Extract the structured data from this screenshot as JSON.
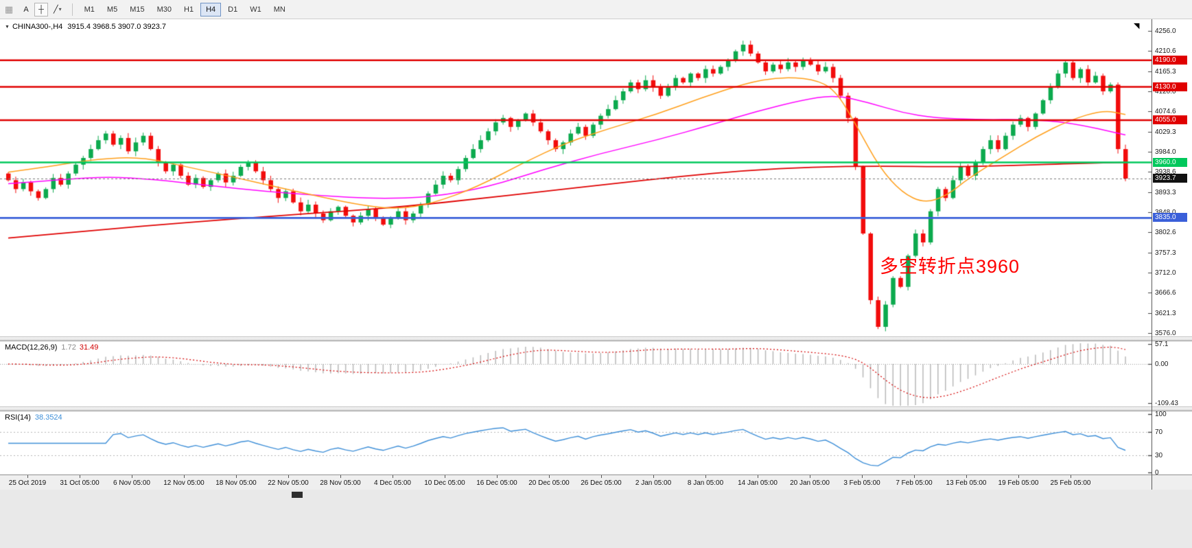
{
  "app": {
    "colors": {
      "up": "#0caa4e",
      "down": "#f20c0c",
      "resistance": "#e00000",
      "pivot": "#00c85c",
      "support": "#3a5fd9",
      "current": "#111111",
      "ma_fast": "#ff9f1a",
      "ma_mid": "#ff00ff",
      "ma_slow": "#e00000",
      "macd_hist": "#b8b8b8",
      "macd_signal": "#d40000",
      "rsi_line": "#3e8fd8",
      "annotation": "#ff0000"
    }
  },
  "toolbar": {
    "icons": [
      {
        "name": "toolbar-handle-icon",
        "glyph": "▦",
        "boxed": false
      },
      {
        "name": "text-annotation-button",
        "glyph": "A",
        "boxed": false
      },
      {
        "name": "crosshair-tool-button",
        "glyph": "┼",
        "boxed": true
      },
      {
        "name": "line-studies-button",
        "glyph": "╱",
        "caret": "▾",
        "boxed": false
      }
    ],
    "timeframes": [
      {
        "label": "M1",
        "selected": false
      },
      {
        "label": "M5",
        "selected": false
      },
      {
        "label": "M15",
        "selected": false
      },
      {
        "label": "M30",
        "selected": false
      },
      {
        "label": "H1",
        "selected": false
      },
      {
        "label": "H4",
        "selected": true
      },
      {
        "label": "D1",
        "selected": false
      },
      {
        "label": "W1",
        "selected": false
      },
      {
        "label": "MN",
        "selected": false
      }
    ]
  },
  "main_chart": {
    "symbol": "CHINA300-,H4",
    "ohlc_text": "3915.4 3968.5 3907.0 3923.7",
    "annotation": "多空转折点3960",
    "y_ticks": [
      "4256.0",
      "4210.6",
      "4165.3",
      "4120.0",
      "4074.6",
      "4029.3",
      "3984.0",
      "3938.6",
      "3893.3",
      "3848.0",
      "3802.6",
      "3757.3",
      "3712.0",
      "3666.6",
      "3621.3",
      "3576.0"
    ],
    "levels": [
      {
        "value": 4190.0,
        "label": "4190.0",
        "kind": "resistance"
      },
      {
        "value": 4130.0,
        "label": "4130.0",
        "kind": "resistance"
      },
      {
        "value": 4055.0,
        "label": "4055.0",
        "kind": "resistance"
      },
      {
        "value": 3960.0,
        "label": "3960.0",
        "kind": "pivot"
      },
      {
        "value": 3835.0,
        "label": "3835.0",
        "kind": "support"
      }
    ],
    "current_price": {
      "value": 3923.7,
      "label": "3923.7"
    }
  },
  "macd_panel": {
    "name": "MACD(12,26,9)",
    "value_main": "1.72",
    "value_signal": "31.49",
    "y_ticks": [
      {
        "label": "57.1",
        "value": 57.1
      },
      {
        "label": "0.00",
        "value": 0
      },
      {
        "label": "-109.43",
        "value": -109.43
      }
    ],
    "ylim": [
      -120,
      64
    ]
  },
  "rsi_panel": {
    "name": "RSI(14)",
    "value": "38.3524",
    "y_ticks": [
      {
        "label": "100",
        "value": 100
      },
      {
        "label": "70",
        "value": 70
      },
      {
        "label": "30",
        "value": 30
      },
      {
        "label": "0",
        "value": 0
      }
    ],
    "levels": [
      70,
      30
    ]
  },
  "time_axis": {
    "labels": [
      "25 Oct 2019",
      "31 Oct 05:00",
      "6 Nov 05:00",
      "12 Nov 05:00",
      "18 Nov 05:00",
      "22 Nov 05:00",
      "28 Nov 05:00",
      "4 Dec 05:00",
      "10 Dec 05:00",
      "16 Dec 05:00",
      "20 Dec 05:00",
      "26 Dec 05:00",
      "2 Jan 05:00",
      "8 Jan 05:00",
      "14 Jan 05:00",
      "20 Jan 05:00",
      "3 Feb 05:00",
      "7 Feb 05:00",
      "13 Feb 05:00",
      "19 Feb 05:00",
      "25 Feb 05:00"
    ]
  },
  "chart_data": {
    "type": "candlestick",
    "symbol": "CHINA300-",
    "timeframe": "H4",
    "ohlc_current": {
      "open": 3915.4,
      "high": 3968.5,
      "low": 3907.0,
      "close": 3923.7
    },
    "y_range": [
      3576.0,
      4256.0
    ],
    "first_open": 3935,
    "closes": [
      3920,
      3900,
      3915,
      3895,
      3880,
      3900,
      3925,
      3910,
      3935,
      3955,
      3970,
      3990,
      4010,
      4025,
      4000,
      4015,
      3985,
      4005,
      4020,
      3990,
      3960,
      3940,
      3955,
      3930,
      3910,
      3925,
      3905,
      3920,
      3935,
      3915,
      3930,
      3950,
      3960,
      3940,
      3920,
      3900,
      3880,
      3895,
      3870,
      3850,
      3865,
      3845,
      3830,
      3850,
      3860,
      3840,
      3825,
      3840,
      3855,
      3835,
      3820,
      3835,
      3850,
      3830,
      3845,
      3865,
      3890,
      3910,
      3930,
      3920,
      3945,
      3970,
      3990,
      4010,
      4030,
      4050,
      4060,
      4040,
      4055,
      4070,
      4050,
      4030,
      4010,
      3990,
      4005,
      4025,
      4040,
      4020,
      4045,
      4065,
      4080,
      4100,
      4120,
      4140,
      4125,
      4145,
      4130,
      4110,
      4130,
      4150,
      4140,
      4160,
      4150,
      4170,
      4160,
      4175,
      4190,
      4210,
      4225,
      4205,
      4185,
      4165,
      4180,
      4170,
      4185,
      4175,
      4190,
      4180,
      4165,
      4175,
      4150,
      4110,
      4060,
      3950,
      3800,
      3650,
      3590,
      3640,
      3700,
      3680,
      3750,
      3800,
      3780,
      3850,
      3900,
      3880,
      3920,
      3950,
      3930,
      3960,
      3990,
      4010,
      3990,
      4020,
      4045,
      4060,
      4040,
      4070,
      4100,
      4130,
      4160,
      4185,
      4150,
      4170,
      4140,
      4155,
      4120,
      4135,
      3990,
      3923.7
    ],
    "horizontal_levels": [
      4190.0,
      4130.0,
      4055.0,
      3960.0,
      3835.0
    ],
    "moving_averages": [
      {
        "name": "ma-slow-red",
        "color_key": "ma_slow",
        "width": 1.8,
        "points": [
          [
            0,
            3790
          ],
          [
            0.08,
            3808
          ],
          [
            0.16,
            3825
          ],
          [
            0.24,
            3840
          ],
          [
            0.3,
            3850
          ],
          [
            0.36,
            3862
          ],
          [
            0.42,
            3878
          ],
          [
            0.48,
            3895
          ],
          [
            0.54,
            3912
          ],
          [
            0.6,
            3928
          ],
          [
            0.66,
            3942
          ],
          [
            0.72,
            3950
          ],
          [
            0.78,
            3952
          ],
          [
            0.84,
            3950
          ],
          [
            0.9,
            3953
          ],
          [
            0.96,
            3958
          ],
          [
            1,
            3960
          ]
        ]
      },
      {
        "name": "ma-mid-magenta",
        "color_key": "ma_mid",
        "width": 1.5,
        "points": [
          [
            0,
            3912
          ],
          [
            0.05,
            3922
          ],
          [
            0.09,
            3928
          ],
          [
            0.13,
            3922
          ],
          [
            0.18,
            3908
          ],
          [
            0.23,
            3895
          ],
          [
            0.28,
            3885
          ],
          [
            0.33,
            3878
          ],
          [
            0.38,
            3882
          ],
          [
            0.43,
            3905
          ],
          [
            0.48,
            3945
          ],
          [
            0.53,
            3980
          ],
          [
            0.58,
            4010
          ],
          [
            0.63,
            4045
          ],
          [
            0.67,
            4075
          ],
          [
            0.71,
            4100
          ],
          [
            0.74,
            4112
          ],
          [
            0.77,
            4095
          ],
          [
            0.8,
            4072
          ],
          [
            0.83,
            4060
          ],
          [
            0.87,
            4056
          ],
          [
            0.91,
            4057
          ],
          [
            0.95,
            4050
          ],
          [
            1,
            4022
          ]
        ]
      },
      {
        "name": "ma-fast-orange",
        "color_key": "ma_fast",
        "width": 1.5,
        "points": [
          [
            0,
            3938
          ],
          [
            0.04,
            3952
          ],
          [
            0.08,
            3968
          ],
          [
            0.12,
            3972
          ],
          [
            0.16,
            3950
          ],
          [
            0.2,
            3928
          ],
          [
            0.24,
            3905
          ],
          [
            0.28,
            3882
          ],
          [
            0.32,
            3862
          ],
          [
            0.35,
            3855
          ],
          [
            0.38,
            3868
          ],
          [
            0.42,
            3905
          ],
          [
            0.46,
            3958
          ],
          [
            0.5,
            4005
          ],
          [
            0.54,
            4038
          ],
          [
            0.58,
            4068
          ],
          [
            0.62,
            4105
          ],
          [
            0.66,
            4138
          ],
          [
            0.69,
            4152
          ],
          [
            0.72,
            4148
          ],
          [
            0.74,
            4125
          ],
          [
            0.76,
            4040
          ],
          [
            0.78,
            3948
          ],
          [
            0.8,
            3892
          ],
          [
            0.82,
            3868
          ],
          [
            0.84,
            3885
          ],
          [
            0.86,
            3925
          ],
          [
            0.89,
            3972
          ],
          [
            0.92,
            4018
          ],
          [
            0.95,
            4055
          ],
          [
            0.98,
            4078
          ],
          [
            1,
            4068
          ]
        ]
      }
    ],
    "indicators": {
      "macd": {
        "fast": 12,
        "slow": 26,
        "signal": 9,
        "current_main": 1.72,
        "current_signal": 31.49
      },
      "rsi": {
        "period": 14,
        "current": 38.3524,
        "levels": [
          70,
          30
        ]
      }
    }
  }
}
